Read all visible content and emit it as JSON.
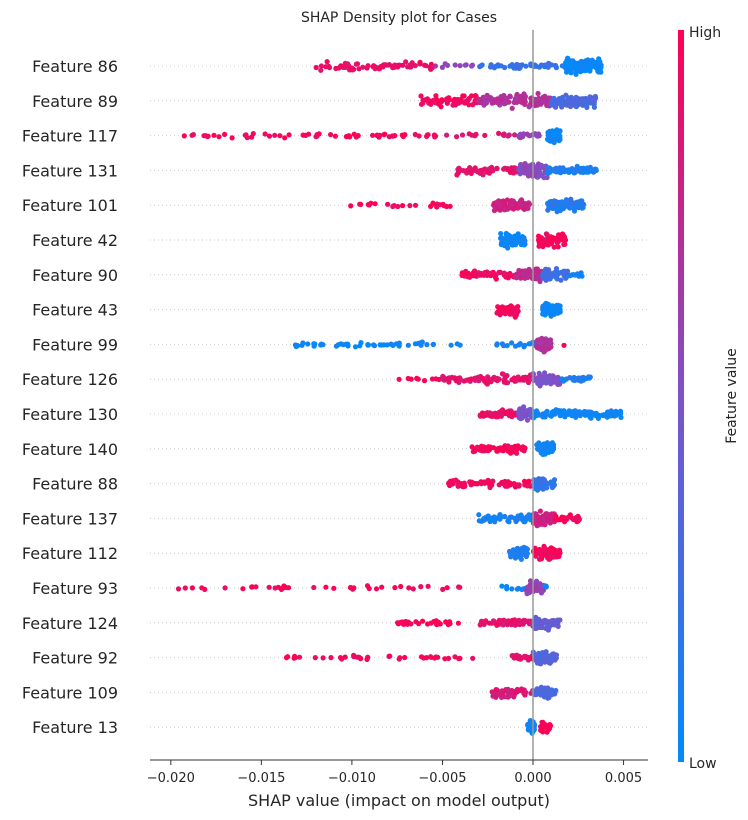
{
  "chart_data": {
    "type": "scatter",
    "title": "SHAP Density plot for Cases",
    "xlabel": "SHAP value (impact on model output)",
    "ylabel": "",
    "xlim": [
      -0.0212,
      0.0063
    ],
    "xticks": [
      -0.02,
      -0.015,
      -0.01,
      -0.005,
      0.0,
      0.005
    ],
    "xtick_labels": [
      "−0.020",
      "−0.015",
      "−0.010",
      "−0.005",
      "0.000",
      "0.005"
    ],
    "grid": false,
    "colorbar": {
      "label": "Feature value",
      "high_label": "High",
      "low_label": "Low",
      "low_color": "#008bfb",
      "mid_color": "#7d52ca",
      "high_color": "#ff0052"
    },
    "features": [
      {
        "name": "Feature 86",
        "groups": [
          {
            "min": -0.012,
            "max": -0.0055,
            "value": 0.92,
            "density": 0.55,
            "count": 70
          },
          {
            "min": -0.0055,
            "max": -0.003,
            "value": 0.6,
            "density": 0.2,
            "count": 10
          },
          {
            "min": -0.003,
            "max": 0.0018,
            "value": 0.2,
            "density": 0.3,
            "count": 45
          },
          {
            "min": 0.0018,
            "max": 0.0038,
            "value": 0.03,
            "density": 1.0,
            "count": 150
          }
        ]
      },
      {
        "name": "Feature 89",
        "groups": [
          {
            "min": -0.0062,
            "max": -0.003,
            "value": 0.95,
            "density": 0.7,
            "count": 70
          },
          {
            "min": -0.003,
            "max": 0.001,
            "value": 0.7,
            "density": 0.9,
            "count": 110
          },
          {
            "min": 0.001,
            "max": 0.0035,
            "value": 0.3,
            "density": 0.9,
            "count": 90
          }
        ]
      },
      {
        "name": "Feature 117",
        "groups": [
          {
            "min": -0.0195,
            "max": -0.005,
            "value": 0.96,
            "density": 0.2,
            "count": 60
          },
          {
            "min": -0.005,
            "max": -0.001,
            "value": 0.85,
            "density": 0.2,
            "count": 15
          },
          {
            "min": -0.001,
            "max": 0.0004,
            "value": 0.6,
            "density": 0.25,
            "count": 20
          },
          {
            "min": 0.0008,
            "max": 0.0015,
            "value": 0.03,
            "density": 0.8,
            "count": 60
          }
        ]
      },
      {
        "name": "Feature 131",
        "groups": [
          {
            "min": -0.0043,
            "max": -0.0008,
            "value": 0.9,
            "density": 0.5,
            "count": 60
          },
          {
            "min": -0.0008,
            "max": 0.0008,
            "value": 0.55,
            "density": 0.9,
            "count": 80
          },
          {
            "min": 0.0008,
            "max": 0.0035,
            "value": 0.1,
            "density": 0.4,
            "count": 90
          }
        ]
      },
      {
        "name": "Feature 101",
        "groups": [
          {
            "min": -0.011,
            "max": -0.0045,
            "value": 0.97,
            "density": 0.2,
            "count": 25
          },
          {
            "min": -0.0022,
            "max": -0.0002,
            "value": 0.8,
            "density": 0.9,
            "count": 80
          },
          {
            "min": 0.0008,
            "max": 0.0028,
            "value": 0.15,
            "density": 0.9,
            "count": 80
          }
        ]
      },
      {
        "name": "Feature 42",
        "groups": [
          {
            "min": -0.0018,
            "max": -0.0004,
            "value": 0.05,
            "density": 0.9,
            "count": 80
          },
          {
            "min": 0.0003,
            "max": 0.0018,
            "value": 0.97,
            "density": 0.9,
            "count": 80
          }
        ]
      },
      {
        "name": "Feature 90",
        "groups": [
          {
            "min": -0.004,
            "max": -0.001,
            "value": 0.95,
            "density": 0.5,
            "count": 60
          },
          {
            "min": -0.001,
            "max": 0.0005,
            "value": 0.75,
            "density": 0.8,
            "count": 60
          },
          {
            "min": 0.0005,
            "max": 0.002,
            "value": 0.25,
            "density": 0.8,
            "count": 50
          },
          {
            "min": 0.002,
            "max": 0.0028,
            "value": 0.05,
            "density": 0.3,
            "count": 10
          }
        ]
      },
      {
        "name": "Feature 43",
        "groups": [
          {
            "min": -0.002,
            "max": -0.0008,
            "value": 0.97,
            "density": 0.8,
            "count": 70
          },
          {
            "min": 0.0005,
            "max": 0.0015,
            "value": 0.03,
            "density": 0.8,
            "count": 70
          }
        ]
      },
      {
        "name": "Feature 99",
        "groups": [
          {
            "min": -0.0133,
            "max": -0.004,
            "value": 0.04,
            "density": 0.2,
            "count": 50
          },
          {
            "min": -0.002,
            "max": 0.0002,
            "value": 0.1,
            "density": 0.2,
            "count": 15
          },
          {
            "min": 0.0002,
            "max": 0.001,
            "value": 0.7,
            "density": 1.0,
            "count": 90
          },
          {
            "min": 0.0016,
            "max": 0.0018,
            "value": 0.97,
            "density": 0.1,
            "count": 1
          }
        ]
      },
      {
        "name": "Feature 126",
        "groups": [
          {
            "min": -0.0075,
            "max": -0.005,
            "value": 0.97,
            "density": 0.15,
            "count": 10
          },
          {
            "min": -0.005,
            "max": 0.0,
            "value": 0.9,
            "density": 0.6,
            "count": 90
          },
          {
            "min": 0.0,
            "max": 0.0015,
            "value": 0.5,
            "density": 0.9,
            "count": 60
          },
          {
            "min": 0.0015,
            "max": 0.0032,
            "value": 0.12,
            "density": 0.3,
            "count": 30
          }
        ]
      },
      {
        "name": "Feature 130",
        "groups": [
          {
            "min": -0.003,
            "max": -0.0008,
            "value": 0.92,
            "density": 0.5,
            "count": 50
          },
          {
            "min": -0.0008,
            "max": 0.0,
            "value": 0.5,
            "density": 0.9,
            "count": 50
          },
          {
            "min": 0.0,
            "max": 0.005,
            "value": 0.05,
            "density": 0.5,
            "count": 110
          }
        ]
      },
      {
        "name": "Feature 140",
        "groups": [
          {
            "min": -0.0034,
            "max": -0.0004,
            "value": 0.97,
            "density": 0.45,
            "count": 70
          },
          {
            "min": 0.0002,
            "max": 0.0012,
            "value": 0.05,
            "density": 0.9,
            "count": 60
          }
        ]
      },
      {
        "name": "Feature 88",
        "groups": [
          {
            "min": -0.0047,
            "max": 0.0,
            "value": 0.95,
            "density": 0.5,
            "count": 90
          },
          {
            "min": 0.0,
            "max": 0.0012,
            "value": 0.2,
            "density": 0.9,
            "count": 70
          }
        ]
      },
      {
        "name": "Feature 137",
        "groups": [
          {
            "min": -0.003,
            "max": 0.0,
            "value": 0.1,
            "density": 0.5,
            "count": 70
          },
          {
            "min": 0.0,
            "max": 0.0012,
            "value": 0.8,
            "density": 1.0,
            "count": 80
          },
          {
            "min": 0.0012,
            "max": 0.0027,
            "value": 0.97,
            "density": 0.3,
            "count": 30
          }
        ]
      },
      {
        "name": "Feature 112",
        "groups": [
          {
            "min": -0.0013,
            "max": -0.0003,
            "value": 0.1,
            "density": 0.8,
            "count": 50
          },
          {
            "min": 0.0,
            "max": 0.0015,
            "value": 0.97,
            "density": 0.9,
            "count": 70
          }
        ]
      },
      {
        "name": "Feature 93",
        "groups": [
          {
            "min": -0.02,
            "max": -0.004,
            "value": 0.97,
            "density": 0.15,
            "count": 40
          },
          {
            "min": -0.002,
            "max": -0.0004,
            "value": 0.05,
            "density": 0.2,
            "count": 10
          },
          {
            "min": -0.0004,
            "max": 0.0006,
            "value": 0.6,
            "density": 0.9,
            "count": 60
          },
          {
            "min": 0.0006,
            "max": 0.0009,
            "value": 0.1,
            "density": 0.2,
            "count": 3
          }
        ]
      },
      {
        "name": "Feature 124",
        "groups": [
          {
            "min": -0.0078,
            "max": -0.004,
            "value": 0.97,
            "density": 0.2,
            "count": 30
          },
          {
            "min": -0.003,
            "max": 0.0,
            "value": 0.9,
            "density": 0.5,
            "count": 70
          },
          {
            "min": 0.0,
            "max": 0.0015,
            "value": 0.4,
            "density": 0.9,
            "count": 60
          }
        ]
      },
      {
        "name": "Feature 92",
        "groups": [
          {
            "min": -0.0137,
            "max": -0.0025,
            "value": 0.97,
            "density": 0.15,
            "count": 40
          },
          {
            "min": -0.0012,
            "max": 0.0,
            "value": 0.9,
            "density": 0.3,
            "count": 25
          },
          {
            "min": 0.0,
            "max": 0.0013,
            "value": 0.35,
            "density": 0.9,
            "count": 60
          }
        ]
      },
      {
        "name": "Feature 109",
        "groups": [
          {
            "min": -0.0023,
            "max": 0.0,
            "value": 0.85,
            "density": 0.6,
            "count": 50
          },
          {
            "min": 0.0,
            "max": 0.0013,
            "value": 0.3,
            "density": 0.9,
            "count": 50
          }
        ]
      },
      {
        "name": "Feature 13",
        "groups": [
          {
            "min": -0.0003,
            "max": 0.0001,
            "value": 0.05,
            "density": 0.9,
            "count": 35
          },
          {
            "min": 0.0004,
            "max": 0.001,
            "value": 0.97,
            "density": 0.6,
            "count": 35
          }
        ]
      }
    ]
  }
}
